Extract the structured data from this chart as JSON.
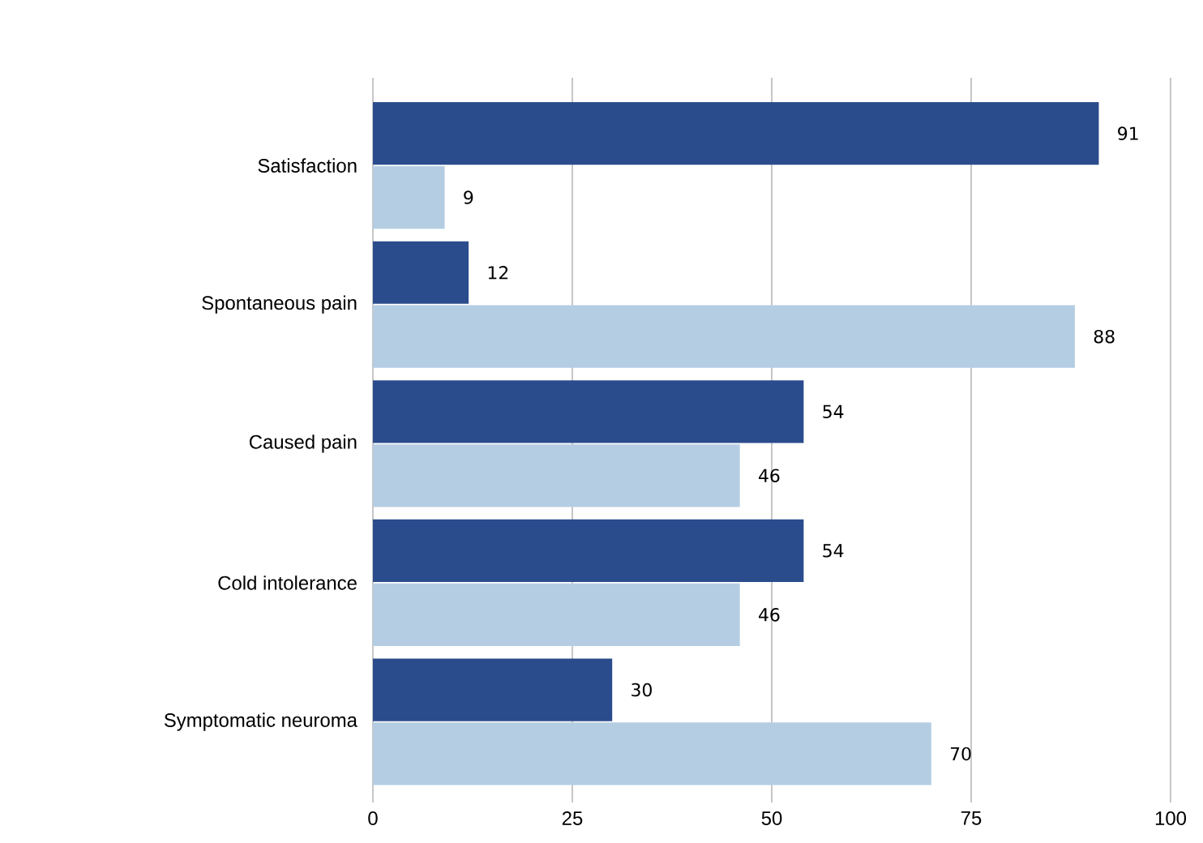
{
  "chart_data": {
    "type": "bar",
    "orientation": "horizontal",
    "categories": [
      "Satisfaction",
      "Spontaneous pain",
      "Caused pain",
      "Cold intolerance",
      "Symptomatic neuroma"
    ],
    "series": [
      {
        "color": "#2b4c8c",
        "values": [
          91,
          12,
          54,
          54,
          30
        ]
      },
      {
        "color": "#b4cde3",
        "values": [
          9,
          88,
          46,
          46,
          70
        ]
      }
    ],
    "xlim": [
      0,
      100
    ],
    "xticks": [
      0,
      25,
      50,
      75,
      100
    ],
    "grid": "x",
    "data_labels": true
  }
}
